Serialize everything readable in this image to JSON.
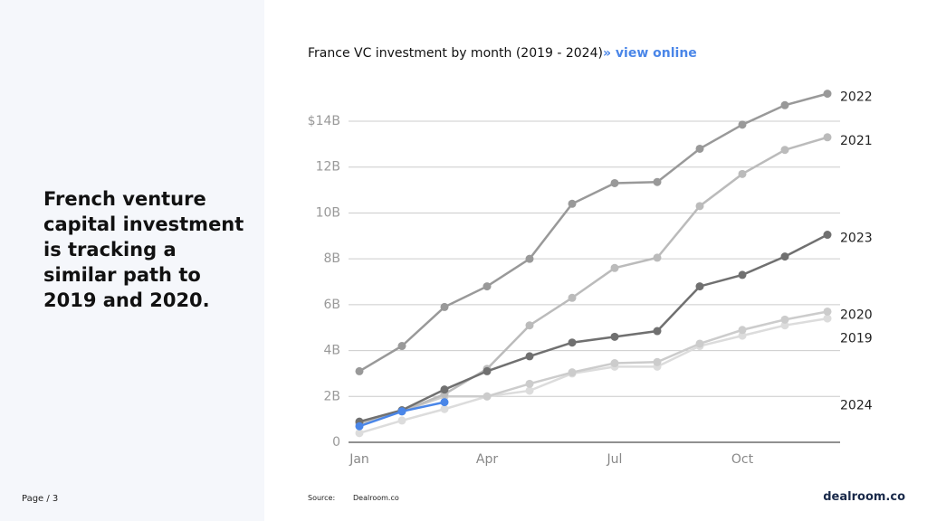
{
  "headline": "French venture capital investment is tracking a similar path to 2019 and 2020.",
  "footer": {
    "page": "Page / 3",
    "source_label": "Source:",
    "source": "Dealroom.co",
    "brand": "dealroom.co"
  },
  "chart_data": {
    "type": "line",
    "title": "France VC investment by month (2019 - 2024)",
    "link": "» view online",
    "categories": [
      "Jan",
      null,
      null,
      "Apr",
      null,
      null,
      "Jul",
      null,
      null,
      "Oct",
      null,
      null
    ],
    "ylim": [
      0,
      15.5
    ],
    "yticks": [
      {
        "value": 0,
        "label": "0"
      },
      {
        "value": 2,
        "label": "2B"
      },
      {
        "value": 4,
        "label": "4B"
      },
      {
        "value": 6,
        "label": "6B"
      },
      {
        "value": 8,
        "label": "8B"
      },
      {
        "value": 10,
        "label": "10B"
      },
      {
        "value": 12,
        "label": "12B"
      },
      {
        "value": 14,
        "label": "$14B"
      }
    ],
    "grid": true,
    "series": [
      {
        "name": "2019",
        "color": "#dcdcdc",
        "values": [
          0.4,
          0.95,
          1.45,
          2.0,
          2.25,
          3.0,
          3.3,
          3.3,
          4.2,
          4.65,
          5.1,
          5.4
        ]
      },
      {
        "name": "2020",
        "color": "#cccccc",
        "values": [
          0.8,
          1.35,
          2.0,
          2.0,
          2.55,
          3.05,
          3.45,
          3.5,
          4.3,
          4.9,
          5.35,
          5.7
        ]
      },
      {
        "name": "2021",
        "color": "#bbbbbb",
        "values": [
          0.85,
          1.35,
          2.1,
          3.2,
          5.1,
          6.3,
          7.6,
          8.05,
          10.3,
          11.7,
          12.75,
          13.3
        ]
      },
      {
        "name": "2022",
        "color": "#999999",
        "values": [
          3.1,
          4.2,
          5.9,
          6.8,
          8.0,
          10.4,
          11.3,
          11.35,
          12.8,
          13.85,
          14.7,
          15.2
        ]
      },
      {
        "name": "2023",
        "color": "#707070",
        "values": [
          0.9,
          1.4,
          2.3,
          3.1,
          3.75,
          4.35,
          4.6,
          4.85,
          6.8,
          7.3,
          8.1,
          9.05
        ]
      },
      {
        "name": "2024",
        "color": "#4a86e8",
        "values": [
          0.7,
          1.35,
          1.75,
          null,
          null,
          null,
          null,
          null,
          null,
          null,
          null,
          null
        ]
      }
    ]
  }
}
